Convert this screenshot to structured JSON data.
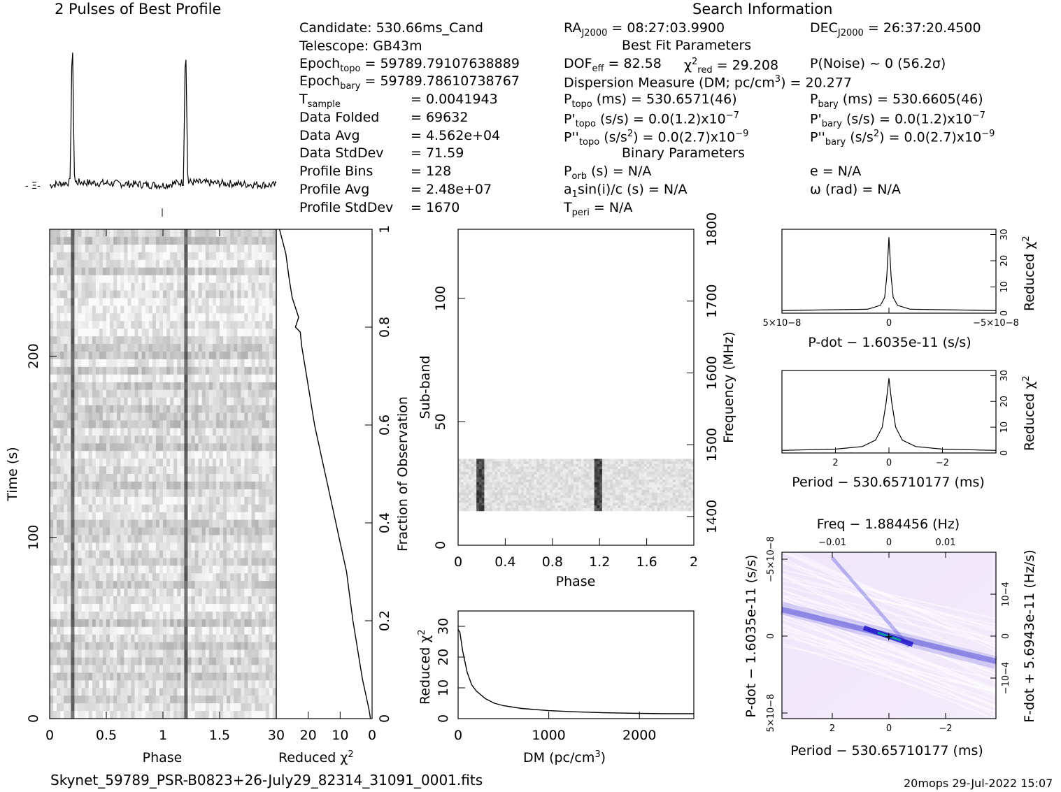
{
  "title_left": "2 Pulses of Best Profile",
  "title_right": "Search Information",
  "footer_file": "Skynet_59789_PSR-B0823+26-July29_82314_31091_0001.fits",
  "footer_stamp": "20mops 29-Jul-2022 15:07",
  "info": {
    "candidate": "Candidate:  530.66ms_Cand",
    "telescope": "Telescope:  GB43m",
    "epoch_topo_label": "Epoch",
    "epoch_topo_sub": "topo",
    "epoch_topo_val": " = 59789.79107638889",
    "epoch_bary_label": "Epoch",
    "epoch_bary_sub": "bary",
    "epoch_bary_val": " = 59789.78610738767",
    "tsample_label": "T",
    "tsample_sub": "sample",
    "tsample_val": "=   0.0041943",
    "data_folded_label": "Data Folded",
    "data_folded_val": "=   69632",
    "data_avg_label": "Data Avg",
    "data_avg_val": "=   4.562e+04",
    "data_std_label": "Data StdDev",
    "data_std_val": "=   71.59",
    "prof_bins_label": "Profile Bins",
    "prof_bins_val": "=   128",
    "prof_avg_label": "Profile Avg",
    "prof_avg_val": "=   2.48e+07",
    "prof_std_label": "Profile StdDev",
    "prof_std_val": "=   1670",
    "ra_label": "RA",
    "ra_sub": "J2000",
    "ra_val": " = 08:27:03.9900",
    "dec_label": "DEC",
    "dec_sub": "J2000",
    "dec_val": " = 26:37:20.4500",
    "best_fit_header": "Best Fit Parameters",
    "dof_label": "DOF",
    "dof_sub": "eff",
    "dof_val": " = 82.58",
    "chi2_label": "χ",
    "chi2_sup": "2",
    "chi2_sub": "red",
    "chi2_val": " = 29.208",
    "pnoise": "P(Noise) ~ 0    (56.2σ)",
    "dm_label": "Dispersion Measure (DM; pc/cm",
    "dm_sup": "3",
    "dm_val": ") = 20.277",
    "ptopo_label": "P",
    "ptopo_sub": "topo",
    "ptopo_val": " (ms) =  530.6571(46)",
    "pbary_label": "P",
    "pbary_sub": "bary",
    "pbary_val": " (ms) =  530.6605(46)",
    "pdtopo_label": "P'",
    "pdtopo_sub": "topo",
    "pdtopo_val": " (s/s) = 0.0(1.2)x10",
    "pdtopo_exp": "−7",
    "pdbary_label": "P'",
    "pdbary_sub": "bary",
    "pdbary_val": " (s/s) = 0.0(1.2)x10",
    "pdbary_exp": "−7",
    "pddtopo_label": "P''",
    "pddtopo_sub": "topo",
    "pddtopo_val": " (s/s",
    "pddtopo_val2": ") = 0.0(2.7)x10",
    "pddtopo_exp": "−9",
    "pddbary_label": "P''",
    "pddbary_sub": "bary",
    "pddbary_val": " (s/s",
    "pddbary_val2": ") = 0.0(2.7)x10",
    "pddbary_exp": "−9",
    "s2_sup": "2",
    "binary_header": "Binary Parameters",
    "porb_label": "P",
    "porb_sub": "orb",
    "porb_val": " (s) = N/A",
    "asini": "a",
    "asini_sub": "1",
    "asini_val": "sin(i)/c (s) = N/A",
    "tperi_label": "T",
    "tperi_sub": "peri",
    "tperi_val": " = N/A",
    "e_val": "e = N/A",
    "omega_val": "ω (rad) = N/A"
  },
  "chart_data": [
    {
      "type": "line",
      "name": "profile",
      "title": "2 Pulses of Best Profile",
      "x": [
        0.0,
        0.09,
        0.095,
        0.1,
        0.105,
        0.11,
        0.5,
        0.59,
        0.595,
        0.6,
        0.605,
        0.61,
        1.0
      ],
      "y": [
        0.0,
        0.02,
        0.5,
        1.0,
        0.45,
        0.02,
        0.0,
        0.02,
        0.5,
        1.0,
        0.45,
        0.02,
        0.0
      ]
    },
    {
      "type": "heatmap",
      "name": "time-phase",
      "xlabel": "Phase",
      "ylabel": "Time (s)",
      "xlim": [
        0,
        2
      ],
      "ylim": [
        0,
        270
      ],
      "xticks": [
        "0",
        "0.5",
        "1",
        "1.5"
      ],
      "yticks": [
        "0",
        "100",
        "200"
      ]
    },
    {
      "type": "line",
      "name": "chi2-vs-time",
      "xlabel": "Reduced χ2",
      "ylabel": "Fraction of Observation",
      "xlim": [
        30,
        0
      ],
      "ylim": [
        0,
        1
      ],
      "xticks": [
        "30",
        "20",
        "10",
        "0"
      ],
      "yticks": [
        "0",
        "0.2",
        "0.4",
        "0.6",
        "0.8",
        "1"
      ],
      "x": [
        0.5,
        1,
        2,
        3,
        4,
        5,
        6,
        7,
        8,
        10,
        12,
        14,
        16,
        18,
        19,
        20,
        21,
        22,
        22.5,
        24,
        23,
        25,
        26,
        27,
        29
      ],
      "y": [
        0.0,
        0.02,
        0.05,
        0.08,
        0.12,
        0.16,
        0.2,
        0.25,
        0.3,
        0.36,
        0.42,
        0.48,
        0.54,
        0.6,
        0.64,
        0.68,
        0.72,
        0.76,
        0.79,
        0.8,
        0.82,
        0.86,
        0.9,
        0.95,
        1.0
      ]
    },
    {
      "type": "heatmap",
      "name": "subband-phase",
      "xlabel": "Phase",
      "ylabel": "Sub-band",
      "y2label": "Frequency (MHz)",
      "xlim": [
        0,
        2
      ],
      "ylim": [
        0,
        128
      ],
      "xticks": [
        "0",
        "0.4",
        "0.8",
        "1.2",
        "1.6",
        "2"
      ],
      "yticks": [
        "0",
        "50",
        "100"
      ],
      "y2ticks": [
        "1400",
        "1500",
        "1600",
        "1700",
        "1800"
      ]
    },
    {
      "type": "line",
      "name": "chi2-vs-dm",
      "xlabel": "DM (pc/cm3)",
      "ylabel": "Reduced χ2",
      "xlim": [
        0,
        2600
      ],
      "ylim": [
        0,
        35
      ],
      "xticks": [
        "0",
        "1000",
        "2000"
      ],
      "yticks": [
        "0",
        "10",
        "20",
        "30"
      ],
      "x": [
        0,
        20,
        50,
        100,
        150,
        200,
        300,
        400,
        500,
        700,
        1000,
        1300,
        1600,
        2000,
        2300,
        2600
      ],
      "y": [
        29,
        28,
        22,
        15,
        11,
        9,
        6.5,
        5,
        4.2,
        3.3,
        2.6,
        2.2,
        1.9,
        1.7,
        1.6,
        1.6
      ]
    },
    {
      "type": "line",
      "name": "chi2-vs-pdot",
      "xlabel": "P-dot − 1.6035e-11 (s/s)",
      "ylabel": "Reduced χ2",
      "xlim": [
        5e-08,
        -5e-08
      ],
      "ylim": [
        0,
        32
      ],
      "xticks": [
        "5×10−8",
        "0",
        "−5×10−8"
      ],
      "yticks": [
        "0",
        "10",
        "20",
        "30"
      ],
      "x": [
        5e-08,
        1e-08,
        4e-09,
        2e-09,
        1e-09,
        0,
        -1e-09,
        -2e-09,
        -4e-09,
        -1e-08,
        -5e-08
      ],
      "y": [
        1,
        1.5,
        3,
        6,
        14,
        29,
        14,
        6,
        3,
        1.5,
        1
      ]
    },
    {
      "type": "line",
      "name": "chi2-vs-period",
      "xlabel": "Period − 530.65710177 (ms)",
      "ylabel": "Reduced χ2",
      "xlim": [
        4,
        -4
      ],
      "ylim": [
        0,
        32
      ],
      "xticks": [
        "2",
        "0",
        "−2"
      ],
      "yticks": [
        "0",
        "10",
        "20",
        "30"
      ],
      "x": [
        4,
        2,
        1,
        0.5,
        0.25,
        0.1,
        0,
        -0.1,
        -0.25,
        -0.5,
        -1,
        -2,
        -4
      ],
      "y": [
        1,
        1.5,
        2.5,
        5,
        10,
        20,
        29,
        20,
        10,
        5,
        2.5,
        1.5,
        1
      ]
    },
    {
      "type": "heatmap",
      "name": "pdot-period",
      "title": "Freq − 1.884456 (Hz)",
      "xlabel": "Period − 530.65710177 (ms)",
      "ylabel": "P-dot − 1.6035e-11 (s/s)",
      "y2label": "F-dot + 5.6943e-11 (Hz/s)",
      "xticks": [
        "2",
        "0",
        "−2"
      ],
      "x2ticks": [
        "−0.01",
        "0",
        "0.01"
      ],
      "yticks": [
        "−5×10−8",
        "0",
        "5×10−8"
      ],
      "y2ticks": [
        "10−4",
        "0",
        "−10−4"
      ]
    }
  ]
}
